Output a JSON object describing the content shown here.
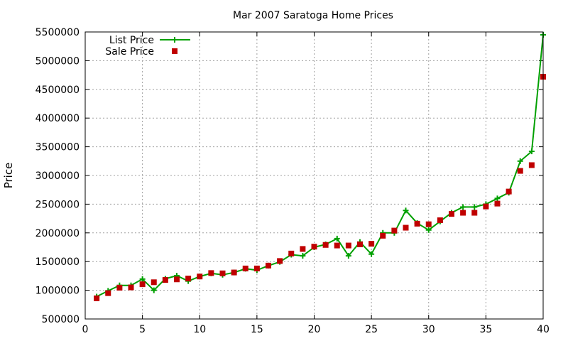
{
  "chart_data": {
    "type": "line",
    "title": "Mar 2007 Saratoga Home Prices",
    "xlabel": "",
    "ylabel": "Price",
    "xlim": [
      0,
      40
    ],
    "ylim": [
      500000,
      5500000
    ],
    "xticks": [
      0,
      5,
      10,
      15,
      20,
      25,
      30,
      35,
      40
    ],
    "yticks": [
      500000,
      1000000,
      1500000,
      2000000,
      2500000,
      3000000,
      3500000,
      4000000,
      4500000,
      5000000,
      5500000
    ],
    "grid": true,
    "legend_position": "top-left",
    "series": [
      {
        "name": "List Price",
        "style": "line-with-plus-markers",
        "color": "#00a000",
        "x": [
          1,
          2,
          3,
          4,
          5,
          6,
          7,
          8,
          9,
          10,
          11,
          12,
          13,
          14,
          15,
          16,
          17,
          18,
          19,
          20,
          21,
          22,
          23,
          24,
          25,
          26,
          27,
          28,
          29,
          30,
          31,
          32,
          33,
          34,
          35,
          36,
          37,
          38,
          39,
          40
        ],
        "values": [
          890000,
          990000,
          1085000,
          1085000,
          1195000,
          1000000,
          1200000,
          1255000,
          1160000,
          1240000,
          1295000,
          1270000,
          1310000,
          1375000,
          1350000,
          1430000,
          1495000,
          1620000,
          1600000,
          1750000,
          1800000,
          1900000,
          1600000,
          1840000,
          1630000,
          2000000,
          2000000,
          2390000,
          2170000,
          2050000,
          2200000,
          2350000,
          2450000,
          2450000,
          2500000,
          2600000,
          2700000,
          3250000,
          3420000,
          5450000
        ]
      },
      {
        "name": "Sale Price",
        "style": "square-markers",
        "color": "#c00000",
        "x": [
          1,
          2,
          3,
          4,
          5,
          6,
          7,
          8,
          9,
          10,
          11,
          12,
          13,
          14,
          15,
          16,
          17,
          18,
          19,
          20,
          21,
          22,
          23,
          24,
          25,
          26,
          27,
          28,
          29,
          30,
          31,
          32,
          33,
          34,
          35,
          36,
          37,
          38,
          39,
          40
        ],
        "values": [
          860000,
          950000,
          1045000,
          1050000,
          1105000,
          1140000,
          1180000,
          1190000,
          1205000,
          1240000,
          1300000,
          1295000,
          1310000,
          1380000,
          1380000,
          1430000,
          1510000,
          1640000,
          1720000,
          1760000,
          1790000,
          1780000,
          1780000,
          1800000,
          1810000,
          1950000,
          2040000,
          2090000,
          2160000,
          2150000,
          2220000,
          2330000,
          2350000,
          2350000,
          2460000,
          2510000,
          2720000,
          3080000,
          3180000,
          4720000
        ]
      }
    ]
  }
}
